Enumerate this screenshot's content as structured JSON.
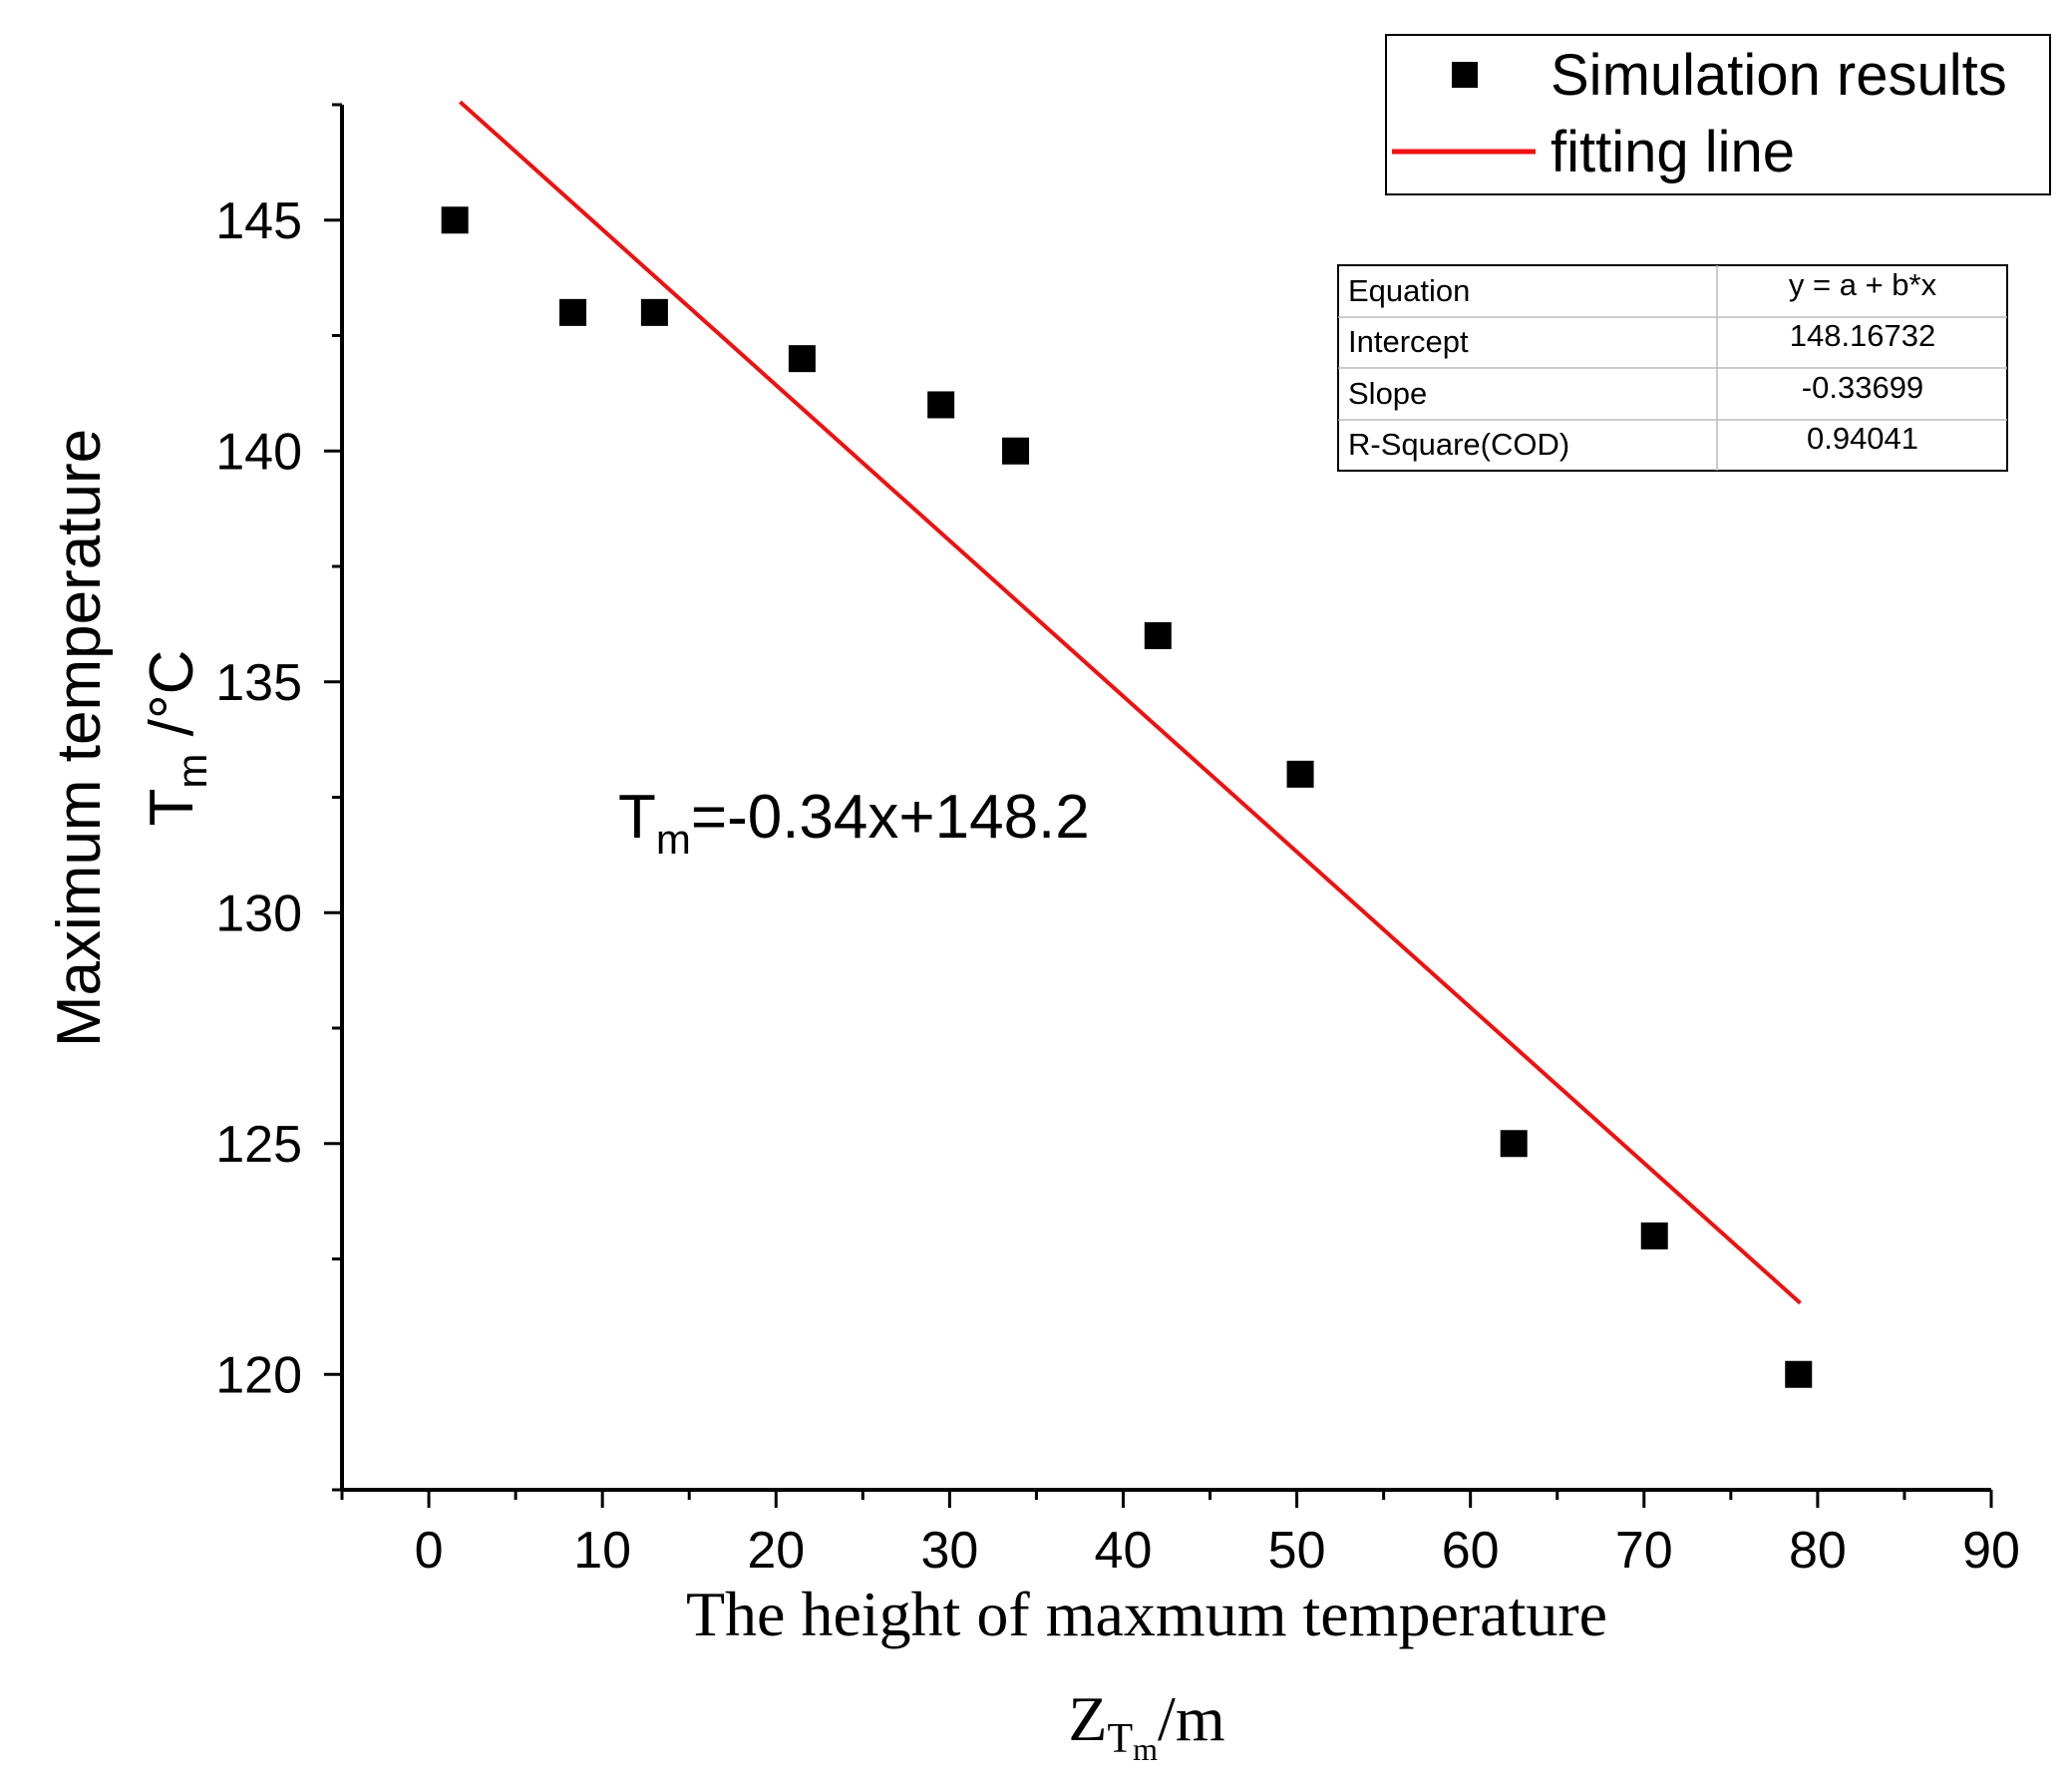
{
  "chart_data": {
    "type": "scatter",
    "xlabel_main": "The height of maxmum temperature",
    "xlabel_unit": {
      "base": "Z",
      "sub": "T",
      "subsub": "m",
      "suffix": "/m"
    },
    "ylabel_main": "Maximum temperature",
    "ylabel_unit": {
      "base": "T",
      "sub": "m",
      "suffix": " /°C"
    },
    "xlim": [
      -5,
      90
    ],
    "ylim": [
      117.5,
      147.5
    ],
    "x_ticks": [
      0,
      10,
      20,
      30,
      40,
      50,
      60,
      70,
      80,
      90
    ],
    "x_tick_labels": [
      "0",
      "10",
      "20",
      "30",
      "40",
      "50",
      "60",
      "70",
      "80",
      "90"
    ],
    "y_ticks": [
      120,
      125,
      130,
      135,
      140,
      145
    ],
    "y_tick_labels": [
      "120",
      "125",
      "130",
      "135",
      "140",
      "145"
    ],
    "series": [
      {
        "name": "Simulation results",
        "marker": "square",
        "color": "#000000",
        "x": [
          1.5,
          8.3,
          13.0,
          21.5,
          29.5,
          33.8,
          42.0,
          50.2,
          62.5,
          70.6,
          78.9
        ],
        "y": [
          145,
          143,
          143,
          142,
          141,
          140,
          136,
          133,
          125,
          123,
          120
        ]
      },
      {
        "name": "fitting line",
        "marker": "line",
        "color": "#ee1111",
        "intercept": 148.16732,
        "slope": -0.33699,
        "x_range": [
          1.8,
          79
        ]
      }
    ],
    "equation_annotation": {
      "base": "T",
      "sub": "m",
      "rest": "=-0.34x+148.2"
    },
    "fit_table": [
      [
        "Equation",
        "y = a + b*x"
      ],
      [
        "Intercept",
        "148.16732"
      ],
      [
        "Slope",
        "-0.33699"
      ],
      [
        "R-Square(COD)",
        "0.94041"
      ]
    ],
    "legend_position": "top-right",
    "grid": false
  }
}
